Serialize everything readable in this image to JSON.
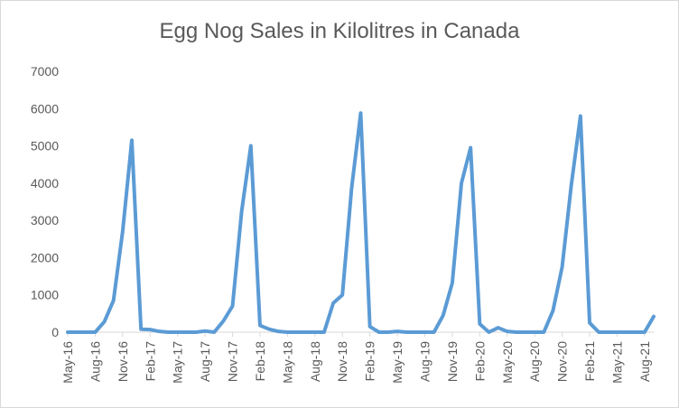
{
  "chart_data": {
    "type": "line",
    "title": "Egg Nog Sales in Kilolitres in Canada",
    "xlabel": "",
    "ylabel": "",
    "ylim": [
      0,
      7000
    ],
    "yticks": [
      "0",
      "1000",
      "2000",
      "3000",
      "4000",
      "5000",
      "6000",
      "7000"
    ],
    "grid": "none",
    "legend": "none",
    "line_color": "#5b9bd5",
    "x_tick_labels": [
      "May-16",
      "Aug-16",
      "Nov-16",
      "Feb-17",
      "May-17",
      "Aug-17",
      "Nov-17",
      "Feb-18",
      "May-18",
      "Aug-18",
      "Nov-18",
      "Feb-19",
      "May-19",
      "Aug-19",
      "Nov-19",
      "Feb-20",
      "May-20",
      "Aug-20",
      "Nov-20",
      "Feb-21",
      "May-21",
      "Aug-21"
    ],
    "x": [
      "May-16",
      "Jun-16",
      "Jul-16",
      "Aug-16",
      "Sep-16",
      "Oct-16",
      "Nov-16",
      "Dec-16",
      "Jan-17",
      "Feb-17",
      "Mar-17",
      "Apr-17",
      "May-17",
      "Jun-17",
      "Jul-17",
      "Aug-17",
      "Sep-17",
      "Oct-17",
      "Nov-17",
      "Dec-17",
      "Jan-18",
      "Feb-18",
      "Mar-18",
      "Apr-18",
      "May-18",
      "Jun-18",
      "Jul-18",
      "Aug-18",
      "Sep-18",
      "Oct-18",
      "Nov-18",
      "Dec-18",
      "Jan-19",
      "Feb-19",
      "Mar-19",
      "Apr-19",
      "May-19",
      "Jun-19",
      "Jul-19",
      "Aug-19",
      "Sep-19",
      "Oct-19",
      "Nov-19",
      "Dec-19",
      "Jan-20",
      "Feb-20",
      "Mar-20",
      "Apr-20",
      "May-20",
      "Jun-20",
      "Jul-20",
      "Aug-20",
      "Sep-20",
      "Oct-20",
      "Nov-20",
      "Dec-20",
      "Jan-21",
      "Feb-21",
      "Mar-21",
      "Apr-21",
      "May-21",
      "Jun-21",
      "Jul-21",
      "Aug-21",
      "Sep-21"
    ],
    "series": [
      {
        "values": [
          0,
          0,
          0,
          0,
          280,
          850,
          2700,
          5150,
          80,
          70,
          20,
          0,
          0,
          0,
          0,
          30,
          0,
          300,
          700,
          3250,
          5000,
          180,
          80,
          20,
          0,
          0,
          0,
          0,
          0,
          780,
          1000,
          3850,
          5880,
          150,
          0,
          0,
          20,
          0,
          0,
          0,
          0,
          450,
          1320,
          4000,
          4950,
          220,
          0,
          120,
          20,
          0,
          0,
          0,
          0,
          580,
          1750,
          3950,
          5800,
          250,
          0,
          0,
          0,
          0,
          0,
          0,
          420
        ]
      }
    ]
  }
}
